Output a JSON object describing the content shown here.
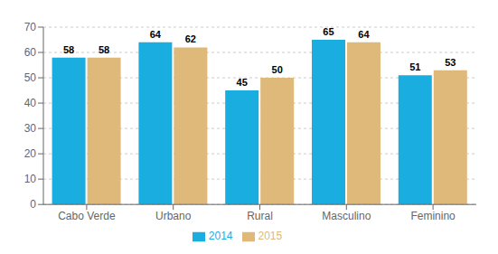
{
  "chart_data": {
    "type": "bar",
    "categories": [
      "Cabo Verde",
      "Urbano",
      "Rural",
      "Masculino",
      "Feminino"
    ],
    "series": [
      {
        "name": "2014",
        "color": "#1aade0",
        "values": [
          58,
          64,
          45,
          65,
          51
        ]
      },
      {
        "name": "2015",
        "color": "#deb97a",
        "values": [
          58,
          62,
          50,
          64,
          53
        ]
      }
    ],
    "ylim": [
      0,
      70
    ],
    "yticks": [
      0,
      10,
      20,
      30,
      40,
      50,
      60,
      70
    ],
    "grid": true,
    "legend": "bottom",
    "data_labels": true
  }
}
